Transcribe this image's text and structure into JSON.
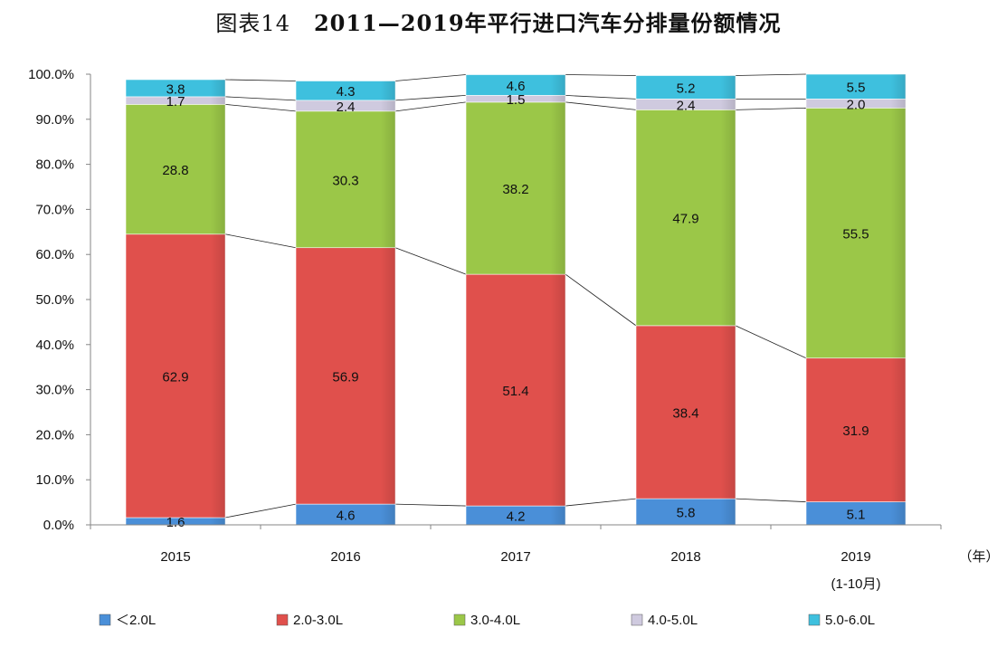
{
  "title": {
    "figure_label": "图表14",
    "text": "2011—2019年平行进口汽车分排量份额情况"
  },
  "chart_data": {
    "type": "bar",
    "stacked": true,
    "percent": true,
    "categories": [
      "2015",
      "2016",
      "2017",
      "2018",
      "2019"
    ],
    "category_sublabels": [
      "",
      "",
      "",
      "",
      "(1-10月)"
    ],
    "x_unit": "（年）",
    "ylim": [
      0,
      100
    ],
    "yticks": [
      "0.0%",
      "10.0%",
      "20.0%",
      "30.0%",
      "40.0%",
      "50.0%",
      "60.0%",
      "70.0%",
      "80.0%",
      "90.0%",
      "100.0%"
    ],
    "series": [
      {
        "name": "＜2.0L",
        "color": "#4a8fd8",
        "values": [
          1.6,
          4.6,
          4.2,
          5.8,
          5.1
        ]
      },
      {
        "name": "2.0-3.0L",
        "color": "#e0504c",
        "values": [
          62.9,
          56.9,
          51.4,
          38.4,
          31.9
        ]
      },
      {
        "name": "3.0-4.0L",
        "color": "#9bc748",
        "values": [
          28.8,
          30.3,
          38.2,
          47.9,
          55.5
        ]
      },
      {
        "name": "4.0-5.0L",
        "color": "#cfcadf",
        "values": [
          1.7,
          2.4,
          1.5,
          2.4,
          2.0
        ]
      },
      {
        "name": "5.0-6.0L",
        "color": "#3ec0de",
        "values": [
          3.8,
          4.3,
          4.6,
          5.2,
          5.5
        ]
      }
    ],
    "legend_position": "bottom",
    "grid": false,
    "series_lines": true
  }
}
